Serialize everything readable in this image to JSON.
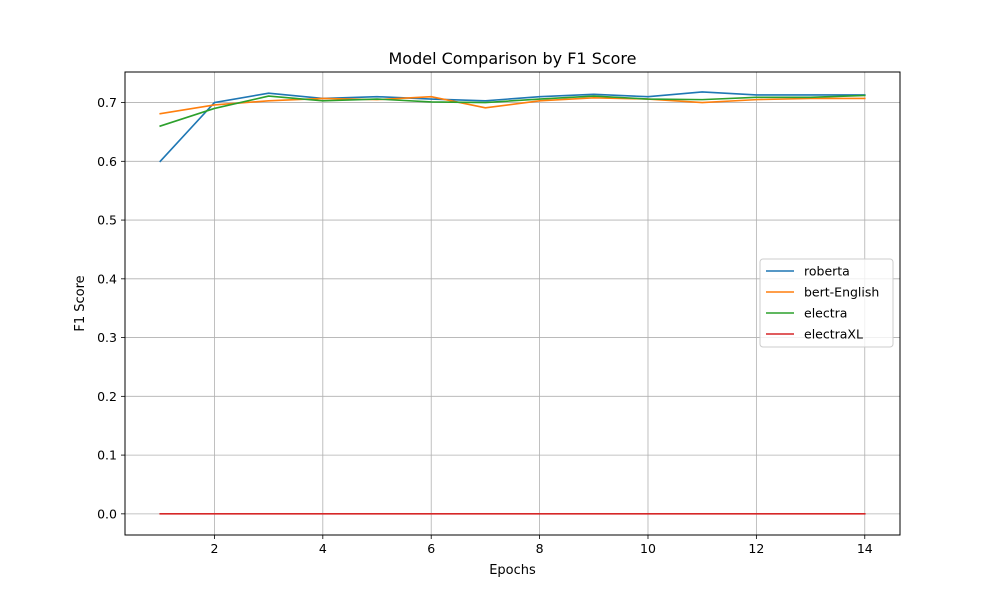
{
  "chart_data": {
    "type": "line",
    "title": "Model Comparison by F1 Score",
    "xlabel": "Epochs",
    "ylabel": "F1 Score",
    "xlim": [
      0.35,
      14.65
    ],
    "ylim": [
      -0.036,
      0.752
    ],
    "xticks": [
      2,
      4,
      6,
      8,
      10,
      12,
      14
    ],
    "yticks": [
      0.0,
      0.1,
      0.2,
      0.3,
      0.4,
      0.5,
      0.6,
      0.7
    ],
    "grid": true,
    "legend_position": "center-right",
    "x": [
      1,
      2,
      3,
      4,
      5,
      6,
      7,
      8,
      9,
      10,
      11,
      12,
      13,
      14
    ],
    "series": [
      {
        "name": "roberta",
        "color": "#1f77b4",
        "values": [
          0.6,
          0.7,
          0.716,
          0.707,
          0.71,
          0.706,
          0.703,
          0.71,
          0.714,
          0.71,
          0.718,
          0.713,
          0.713,
          0.713
        ]
      },
      {
        "name": "bert-English",
        "color": "#ff7f0e",
        "values": [
          0.681,
          0.696,
          0.703,
          0.707,
          0.705,
          0.71,
          0.691,
          0.703,
          0.708,
          0.706,
          0.7,
          0.705,
          0.707,
          0.707
        ]
      },
      {
        "name": "electra",
        "color": "#2ca02c",
        "values": [
          0.66,
          0.69,
          0.711,
          0.703,
          0.706,
          0.701,
          0.7,
          0.706,
          0.711,
          0.706,
          0.705,
          0.709,
          0.709,
          0.712
        ]
      },
      {
        "name": "electraXL",
        "color": "#d62728",
        "values": [
          0.0,
          0.0,
          0.0,
          0.0,
          0.0,
          0.0,
          0.0,
          0.0,
          0.0,
          0.0,
          0.0,
          0.0,
          0.0,
          0.0
        ]
      }
    ]
  }
}
